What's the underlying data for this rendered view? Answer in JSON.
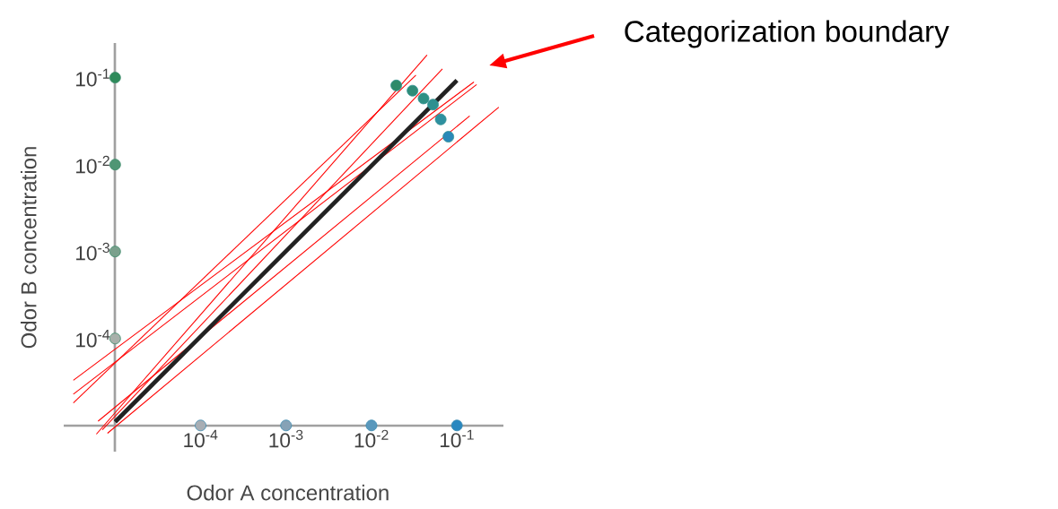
{
  "chart_data": {
    "type": "scatter",
    "xlabel": "Odor A concentration",
    "ylabel": "Odor B concentration",
    "log": "xy",
    "grid": false,
    "xlim": [
      2.5e-06,
      0.35
    ],
    "ylim": [
      5e-06,
      0.25
    ],
    "xticks": [
      {
        "value": 0.0001,
        "label": "10$^{-4}$"
      },
      {
        "value": 0.001,
        "label": "10$^{-3}$"
      },
      {
        "value": 0.01,
        "label": "10$^{-2}$"
      },
      {
        "value": 0.1,
        "label": "10$^{-1}$"
      }
    ],
    "yticks": [
      {
        "value": 0.0001,
        "label": "10$^{-4}$"
      },
      {
        "value": 0.001,
        "label": "10$^{-3}$"
      },
      {
        "value": 0.01,
        "label": "10$^{-2}$"
      },
      {
        "value": 0.1,
        "label": "10$^{-1}$"
      }
    ],
    "annotations": [
      "Categorization boundary"
    ],
    "series": [
      {
        "type": "line",
        "color": "#ff0000",
        "x": [
          3.24e-06,
          0.158
        ],
        "values": [
          3.31e-05,
          0.0891
        ]
      },
      {
        "type": "line",
        "color": "#ff0000",
        "x": [
          3.24e-06,
          0.17
        ],
        "values": [
          2.29e-05,
          0.0832
        ]
      },
      {
        "type": "line",
        "color": "#ff0000",
        "x": [
          3.24e-06,
          0.0331
        ],
        "values": [
          1.82e-05,
          0.107
        ]
      },
      {
        "type": "line",
        "color": "#ff0000",
        "x": [
          6.03e-06,
          0.0447
        ],
        "values": [
          7.94e-06,
          0.182
        ]
      },
      {
        "type": "line",
        "color": "#ff0000",
        "x": [
          7.08e-06,
          0.0676
        ],
        "values": [
          8.91e-06,
          0.126
        ]
      },
      {
        "type": "line",
        "color": "#ff0000",
        "x": [
          6.31e-06,
          0.141
        ],
        "values": [
          1.12e-05,
          0.0363
        ]
      },
      {
        "type": "line",
        "color": "#ff0000",
        "x": [
          8.13e-06,
          0.309
        ],
        "values": [
          8.13e-06,
          0.0457
        ]
      },
      {
        "type": "line",
        "color": "#222222",
        "x": [
          1e-05,
          0.1
        ],
        "values": [
          1.1e-05,
          0.093
        ]
      },
      {
        "type": "scatter",
        "color": "#3a8a6a",
        "x": [
          1e-05,
          1e-05,
          1e-05,
          1e-05
        ],
        "values": [
          0.1,
          0.01,
          0.001,
          0.0001
        ],
        "colors": [
          "#2e8a5a",
          "#4f9674",
          "#7aa08c",
          "#a8b0aa"
        ]
      },
      {
        "type": "scatter",
        "color": "#3a8ab0",
        "x": [
          0.0001,
          0.001,
          0.01,
          0.1
        ],
        "values": [
          1e-05,
          1e-05,
          1e-05,
          1e-05
        ],
        "colors": [
          "#a8aeb4",
          "#86a2b6",
          "#5a98bc",
          "#2a88c0"
        ]
      },
      {
        "type": "scatter",
        "color": "#2f9090",
        "x": [
          0.0195,
          0.0302,
          0.0407,
          0.0525,
          0.0646,
          0.0794
        ],
        "values": [
          0.0813,
          0.0708,
          0.0575,
          0.049,
          0.0331,
          0.0209
        ],
        "colors": [
          "#2e8a6a",
          "#2e8c78",
          "#2e9084",
          "#2e9090",
          "#2e90a0",
          "#2a88b8"
        ]
      }
    ]
  }
}
